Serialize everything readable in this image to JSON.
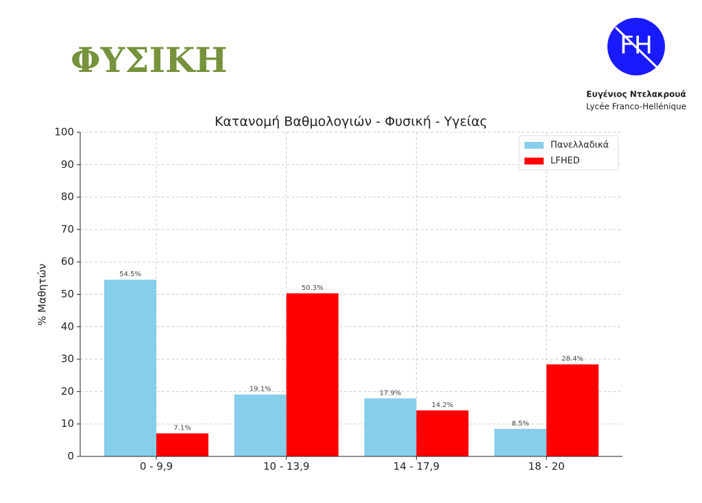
{
  "header": {
    "title": "ΦΥΣΙΚΗ"
  },
  "logo": {
    "mark": "FH",
    "name": "Ευγένιος Ντελακρουά",
    "school": "Lycée Franco-Hellénique"
  },
  "chart_data": {
    "type": "bar",
    "title": "Κατανομή Βαθμολογιών - Φυσική - Υγείας",
    "y_label": "% Μαθητών",
    "categories": [
      "0 - 9,9",
      "10 - 13,9",
      "14 - 17,9",
      "18 - 20"
    ],
    "series": [
      {
        "name": "Πανελλαδικά",
        "color": "#87ceeb",
        "values": [
          54.5,
          19.1,
          17.9,
          8.5
        ],
        "value_labels": [
          "54.5%",
          "19.1%",
          "17.9%",
          "8.5%"
        ]
      },
      {
        "name": "LFHED",
        "color": "#ff0000",
        "values": [
          7.1,
          50.3,
          14.2,
          28.4
        ],
        "value_labels": [
          "7.1%",
          "50.3%",
          "14.2%",
          "28.4%"
        ]
      }
    ],
    "ylim": [
      0,
      100
    ],
    "yticks": [
      0,
      10,
      20,
      30,
      40,
      50,
      60,
      70,
      80,
      90,
      100
    ],
    "grid": true,
    "legend": "upper right"
  }
}
